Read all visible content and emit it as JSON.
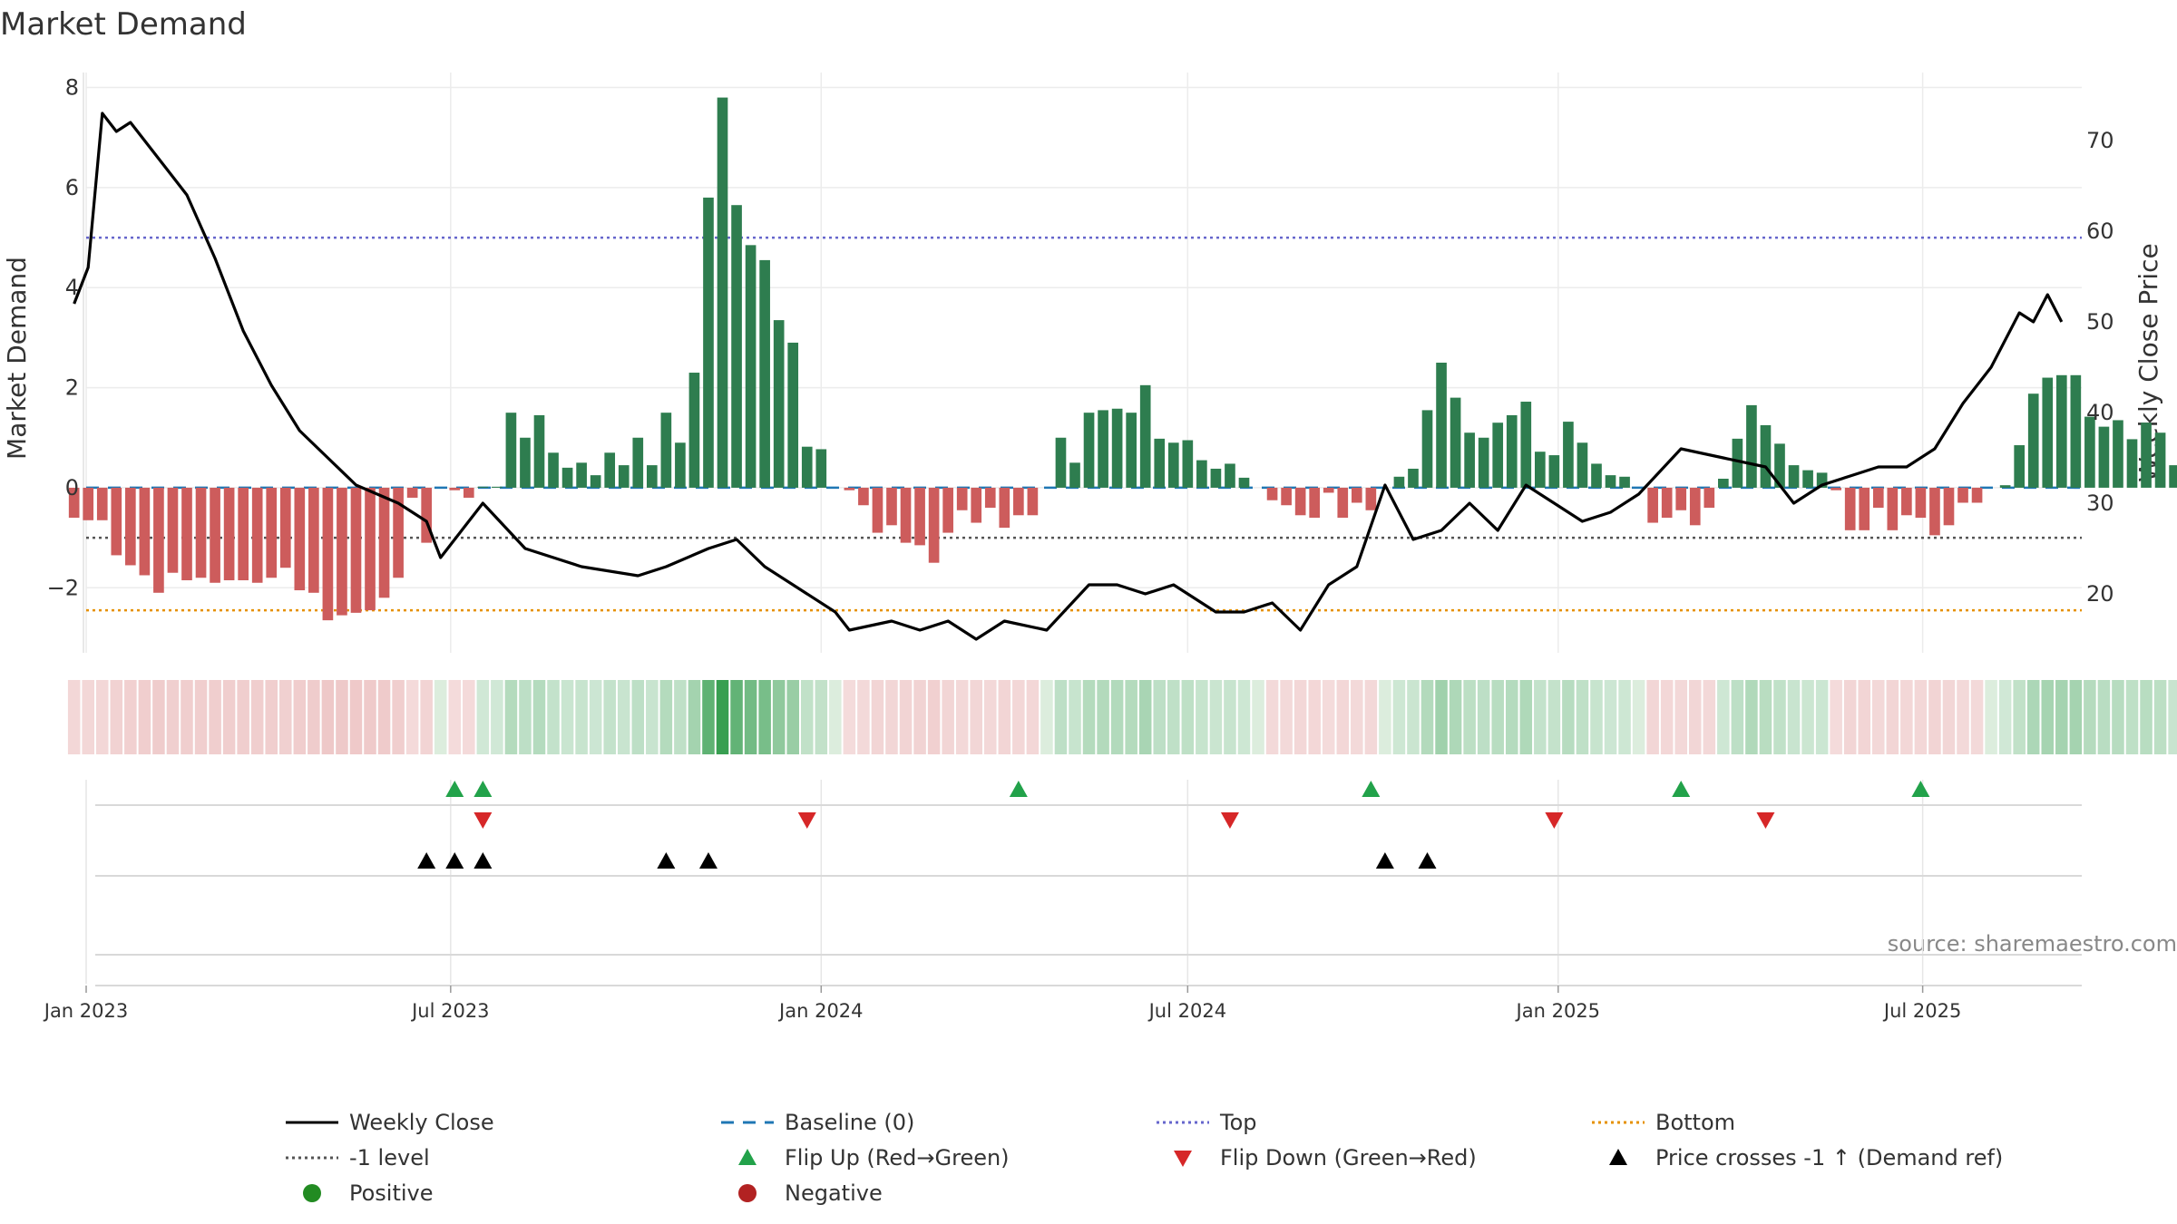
{
  "chart_data": {
    "type": "bar",
    "title": "Market Demand",
    "ylabel": "Market Demand",
    "y2label": "Weekly Close Price",
    "source": "source: sharemaestro.com",
    "ylim": [
      -3.3,
      8.3
    ],
    "y2lim": [
      13.5,
      77.5
    ],
    "yticks": [
      -2,
      0,
      2,
      4,
      6,
      8
    ],
    "y2ticks": [
      20,
      30,
      40,
      50,
      60,
      70
    ],
    "x_start": "2023-01-01",
    "x_end": "2025-09-18",
    "xticks": [
      {
        "date": "2023-01-01",
        "label": "Jan 2023"
      },
      {
        "date": "2023-07-01",
        "label": "Jul 2023"
      },
      {
        "date": "2024-01-01",
        "label": "Jan 2024"
      },
      {
        "date": "2024-07-01",
        "label": "Jul 2024"
      },
      {
        "date": "2025-01-01",
        "label": "Jan 2025"
      },
      {
        "date": "2025-07-01",
        "label": "Jul 2025"
      }
    ],
    "reference_lines": {
      "baseline": 0,
      "top": 5.0,
      "minus_one_level": -1.0,
      "bottom": -2.45
    },
    "bar_start_date": "2022-12-26",
    "demand": [
      -0.6,
      -0.65,
      -0.65,
      -1.35,
      -1.55,
      -1.75,
      -2.1,
      -1.7,
      -1.85,
      -1.8,
      -1.9,
      -1.85,
      -1.85,
      -1.9,
      -1.8,
      -1.6,
      -2.05,
      -2.1,
      -2.65,
      -2.55,
      -2.5,
      -2.45,
      -2.2,
      -1.8,
      -0.2,
      -1.1,
      0,
      -0.05,
      -0.2,
      0.02,
      0.02,
      1.5,
      1.0,
      1.45,
      0.7,
      0.4,
      0.5,
      0.25,
      0.7,
      0.45,
      1.0,
      0.45,
      1.5,
      0.9,
      2.3,
      5.8,
      7.8,
      5.65,
      4.85,
      4.55,
      3.35,
      2.9,
      0.82,
      0.77,
      0,
      -0.05,
      -0.35,
      -0.9,
      -0.75,
      -1.1,
      -1.15,
      -1.5,
      -0.9,
      -0.45,
      -0.7,
      -0.4,
      -0.8,
      -0.55,
      -0.55,
      0,
      1.0,
      0.5,
      1.5,
      1.55,
      1.58,
      1.5,
      2.05,
      0.98,
      0.9,
      0.95,
      0.55,
      0.38,
      0.48,
      0.2,
      0,
      -0.25,
      -0.35,
      -0.55,
      -0.6,
      -0.1,
      -0.6,
      -0.3,
      -0.45,
      0,
      0.22,
      0.38,
      1.55,
      2.5,
      1.8,
      1.1,
      1.0,
      1.3,
      1.45,
      1.72,
      0.72,
      0.65,
      1.32,
      0.9,
      0.48,
      0.25,
      0.22,
      0,
      -0.7,
      -0.6,
      -0.45,
      -0.75,
      -0.4,
      0.18,
      0.98,
      1.65,
      1.25,
      0.88,
      0.45,
      0.35,
      0.3,
      -0.05,
      -0.85,
      -0.85,
      -0.4,
      -0.85,
      -0.55,
      -0.6,
      -0.95,
      -0.75,
      -0.3,
      -0.3,
      0,
      0.05,
      0.85,
      1.88,
      2.2,
      2.25,
      2.25,
      1.42,
      1.22,
      1.35,
      0.97,
      1.3,
      1.1,
      0.45
    ],
    "weekly_close": [
      {
        "date": "2022-12-26",
        "close": 52
      },
      {
        "date": "2023-01-02",
        "close": 56
      },
      {
        "date": "2023-01-09",
        "close": 73
      },
      {
        "date": "2023-01-16",
        "close": 71
      },
      {
        "date": "2023-01-23",
        "close": 72
      },
      {
        "date": "2023-02-13",
        "close": 66
      },
      {
        "date": "2023-02-20",
        "close": 64
      },
      {
        "date": "2023-03-06",
        "close": 57
      },
      {
        "date": "2023-03-20",
        "close": 49
      },
      {
        "date": "2023-04-03",
        "close": 43
      },
      {
        "date": "2023-04-17",
        "close": 38
      },
      {
        "date": "2023-05-01",
        "close": 35
      },
      {
        "date": "2023-05-15",
        "close": 32
      },
      {
        "date": "2023-06-05",
        "close": 30
      },
      {
        "date": "2023-06-19",
        "close": 28
      },
      {
        "date": "2023-06-26",
        "close": 24
      },
      {
        "date": "2023-07-17",
        "close": 30
      },
      {
        "date": "2023-08-07",
        "close": 25
      },
      {
        "date": "2023-09-04",
        "close": 23
      },
      {
        "date": "2023-10-02",
        "close": 22
      },
      {
        "date": "2023-10-16",
        "close": 23
      },
      {
        "date": "2023-11-06",
        "close": 25
      },
      {
        "date": "2023-11-20",
        "close": 26
      },
      {
        "date": "2023-12-04",
        "close": 23
      },
      {
        "date": "2023-12-18",
        "close": 21
      },
      {
        "date": "2024-01-08",
        "close": 18
      },
      {
        "date": "2024-01-15",
        "close": 16
      },
      {
        "date": "2024-02-05",
        "close": 17
      },
      {
        "date": "2024-02-19",
        "close": 16
      },
      {
        "date": "2024-03-04",
        "close": 17
      },
      {
        "date": "2024-03-18",
        "close": 15
      },
      {
        "date": "2024-04-01",
        "close": 17
      },
      {
        "date": "2024-04-22",
        "close": 16
      },
      {
        "date": "2024-05-13",
        "close": 21
      },
      {
        "date": "2024-05-27",
        "close": 21
      },
      {
        "date": "2024-06-10",
        "close": 20
      },
      {
        "date": "2024-06-24",
        "close": 21
      },
      {
        "date": "2024-07-15",
        "close": 18
      },
      {
        "date": "2024-07-29",
        "close": 18
      },
      {
        "date": "2024-08-12",
        "close": 19
      },
      {
        "date": "2024-08-26",
        "close": 16
      },
      {
        "date": "2024-09-09",
        "close": 21
      },
      {
        "date": "2024-09-23",
        "close": 23
      },
      {
        "date": "2024-10-07",
        "close": 32
      },
      {
        "date": "2024-10-21",
        "close": 26
      },
      {
        "date": "2024-11-04",
        "close": 27
      },
      {
        "date": "2024-11-18",
        "close": 30
      },
      {
        "date": "2024-12-02",
        "close": 27
      },
      {
        "date": "2024-12-16",
        "close": 32
      },
      {
        "date": "2024-12-30",
        "close": 30
      },
      {
        "date": "2025-01-13",
        "close": 28
      },
      {
        "date": "2025-01-27",
        "close": 29
      },
      {
        "date": "2025-02-10",
        "close": 31
      },
      {
        "date": "2025-03-03",
        "close": 36
      },
      {
        "date": "2025-03-24",
        "close": 35
      },
      {
        "date": "2025-04-14",
        "close": 34
      },
      {
        "date": "2025-04-28",
        "close": 30
      },
      {
        "date": "2025-05-12",
        "close": 32
      },
      {
        "date": "2025-05-26",
        "close": 33
      },
      {
        "date": "2025-06-09",
        "close": 34
      },
      {
        "date": "2025-06-23",
        "close": 34
      },
      {
        "date": "2025-07-07",
        "close": 36
      },
      {
        "date": "2025-07-21",
        "close": 41
      },
      {
        "date": "2025-08-04",
        "close": 45
      },
      {
        "date": "2025-08-18",
        "close": 51
      },
      {
        "date": "2025-08-25",
        "close": 50
      },
      {
        "date": "2025-09-01",
        "close": 53
      },
      {
        "date": "2025-09-08",
        "close": 50
      }
    ],
    "flip_up": [
      "2023-07-03",
      "2023-07-17",
      "2024-04-08",
      "2024-09-30",
      "2025-03-03",
      "2025-06-30"
    ],
    "flip_down": [
      "2023-07-17",
      "2023-12-25",
      "2024-07-22",
      "2024-12-30",
      "2025-04-14"
    ],
    "price_crosses": [
      "2023-06-19",
      "2023-07-03",
      "2023-07-17",
      "2023-10-16",
      "2023-11-06",
      "2024-10-07",
      "2024-10-28"
    ],
    "legend": [
      {
        "label": "Weekly Close",
        "marker": "line-solid",
        "color": "#000000"
      },
      {
        "label": "Baseline (0)",
        "marker": "line-dash",
        "color": "#1f77b4"
      },
      {
        "label": "Top",
        "marker": "line-dot",
        "color": "#6666cc"
      },
      {
        "label": "Bottom",
        "marker": "line-dot",
        "color": "#e69100"
      },
      {
        "label": "-1 level",
        "marker": "line-dot",
        "color": "#555555"
      },
      {
        "label": "Flip Up (Red→Green)",
        "marker": "triangle-up",
        "color": "#22a24a"
      },
      {
        "label": "Flip Down (Green→Red)",
        "marker": "triangle-down",
        "color": "#d62728"
      },
      {
        "label": "Price crosses -1 ↑ (Demand ref)",
        "marker": "triangle-up",
        "color": "#000000"
      },
      {
        "label": "Positive",
        "marker": "circle",
        "color": "#228b22"
      },
      {
        "label": "Negative",
        "marker": "circle",
        "color": "#b22222"
      }
    ],
    "legend_placement": "bottom",
    "grid": true,
    "colors": {
      "positive": "#2e7d4f",
      "negative": "#cd5c5c",
      "line": "#000000"
    }
  }
}
